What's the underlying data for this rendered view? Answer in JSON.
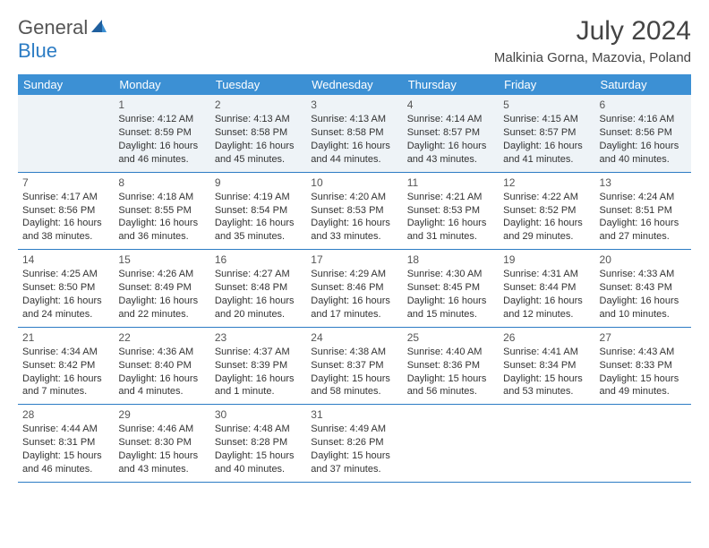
{
  "logo": {
    "part1": "General",
    "part2": "Blue"
  },
  "title": "July 2024",
  "location": "Malkinia Gorna, Mazovia, Poland",
  "colors": {
    "header_bg": "#3c90d4",
    "header_text": "#ffffff",
    "row_divider": "#2c7cc4",
    "first_row_bg": "#eef3f7",
    "body_text": "#333333",
    "logo_gray": "#555555",
    "logo_blue": "#2c7cc4",
    "page_bg": "#ffffff"
  },
  "weekdays": [
    "Sunday",
    "Monday",
    "Tuesday",
    "Wednesday",
    "Thursday",
    "Friday",
    "Saturday"
  ],
  "weeks": [
    [
      null,
      {
        "n": "1",
        "sr": "Sunrise: 4:12 AM",
        "ss": "Sunset: 8:59 PM",
        "dl": "Daylight: 16 hours and 46 minutes."
      },
      {
        "n": "2",
        "sr": "Sunrise: 4:13 AM",
        "ss": "Sunset: 8:58 PM",
        "dl": "Daylight: 16 hours and 45 minutes."
      },
      {
        "n": "3",
        "sr": "Sunrise: 4:13 AM",
        "ss": "Sunset: 8:58 PM",
        "dl": "Daylight: 16 hours and 44 minutes."
      },
      {
        "n": "4",
        "sr": "Sunrise: 4:14 AM",
        "ss": "Sunset: 8:57 PM",
        "dl": "Daylight: 16 hours and 43 minutes."
      },
      {
        "n": "5",
        "sr": "Sunrise: 4:15 AM",
        "ss": "Sunset: 8:57 PM",
        "dl": "Daylight: 16 hours and 41 minutes."
      },
      {
        "n": "6",
        "sr": "Sunrise: 4:16 AM",
        "ss": "Sunset: 8:56 PM",
        "dl": "Daylight: 16 hours and 40 minutes."
      }
    ],
    [
      {
        "n": "7",
        "sr": "Sunrise: 4:17 AM",
        "ss": "Sunset: 8:56 PM",
        "dl": "Daylight: 16 hours and 38 minutes."
      },
      {
        "n": "8",
        "sr": "Sunrise: 4:18 AM",
        "ss": "Sunset: 8:55 PM",
        "dl": "Daylight: 16 hours and 36 minutes."
      },
      {
        "n": "9",
        "sr": "Sunrise: 4:19 AM",
        "ss": "Sunset: 8:54 PM",
        "dl": "Daylight: 16 hours and 35 minutes."
      },
      {
        "n": "10",
        "sr": "Sunrise: 4:20 AM",
        "ss": "Sunset: 8:53 PM",
        "dl": "Daylight: 16 hours and 33 minutes."
      },
      {
        "n": "11",
        "sr": "Sunrise: 4:21 AM",
        "ss": "Sunset: 8:53 PM",
        "dl": "Daylight: 16 hours and 31 minutes."
      },
      {
        "n": "12",
        "sr": "Sunrise: 4:22 AM",
        "ss": "Sunset: 8:52 PM",
        "dl": "Daylight: 16 hours and 29 minutes."
      },
      {
        "n": "13",
        "sr": "Sunrise: 4:24 AM",
        "ss": "Sunset: 8:51 PM",
        "dl": "Daylight: 16 hours and 27 minutes."
      }
    ],
    [
      {
        "n": "14",
        "sr": "Sunrise: 4:25 AM",
        "ss": "Sunset: 8:50 PM",
        "dl": "Daylight: 16 hours and 24 minutes."
      },
      {
        "n": "15",
        "sr": "Sunrise: 4:26 AM",
        "ss": "Sunset: 8:49 PM",
        "dl": "Daylight: 16 hours and 22 minutes."
      },
      {
        "n": "16",
        "sr": "Sunrise: 4:27 AM",
        "ss": "Sunset: 8:48 PM",
        "dl": "Daylight: 16 hours and 20 minutes."
      },
      {
        "n": "17",
        "sr": "Sunrise: 4:29 AM",
        "ss": "Sunset: 8:46 PM",
        "dl": "Daylight: 16 hours and 17 minutes."
      },
      {
        "n": "18",
        "sr": "Sunrise: 4:30 AM",
        "ss": "Sunset: 8:45 PM",
        "dl": "Daylight: 16 hours and 15 minutes."
      },
      {
        "n": "19",
        "sr": "Sunrise: 4:31 AM",
        "ss": "Sunset: 8:44 PM",
        "dl": "Daylight: 16 hours and 12 minutes."
      },
      {
        "n": "20",
        "sr": "Sunrise: 4:33 AM",
        "ss": "Sunset: 8:43 PM",
        "dl": "Daylight: 16 hours and 10 minutes."
      }
    ],
    [
      {
        "n": "21",
        "sr": "Sunrise: 4:34 AM",
        "ss": "Sunset: 8:42 PM",
        "dl": "Daylight: 16 hours and 7 minutes."
      },
      {
        "n": "22",
        "sr": "Sunrise: 4:36 AM",
        "ss": "Sunset: 8:40 PM",
        "dl": "Daylight: 16 hours and 4 minutes."
      },
      {
        "n": "23",
        "sr": "Sunrise: 4:37 AM",
        "ss": "Sunset: 8:39 PM",
        "dl": "Daylight: 16 hours and 1 minute."
      },
      {
        "n": "24",
        "sr": "Sunrise: 4:38 AM",
        "ss": "Sunset: 8:37 PM",
        "dl": "Daylight: 15 hours and 58 minutes."
      },
      {
        "n": "25",
        "sr": "Sunrise: 4:40 AM",
        "ss": "Sunset: 8:36 PM",
        "dl": "Daylight: 15 hours and 56 minutes."
      },
      {
        "n": "26",
        "sr": "Sunrise: 4:41 AM",
        "ss": "Sunset: 8:34 PM",
        "dl": "Daylight: 15 hours and 53 minutes."
      },
      {
        "n": "27",
        "sr": "Sunrise: 4:43 AM",
        "ss": "Sunset: 8:33 PM",
        "dl": "Daylight: 15 hours and 49 minutes."
      }
    ],
    [
      {
        "n": "28",
        "sr": "Sunrise: 4:44 AM",
        "ss": "Sunset: 8:31 PM",
        "dl": "Daylight: 15 hours and 46 minutes."
      },
      {
        "n": "29",
        "sr": "Sunrise: 4:46 AM",
        "ss": "Sunset: 8:30 PM",
        "dl": "Daylight: 15 hours and 43 minutes."
      },
      {
        "n": "30",
        "sr": "Sunrise: 4:48 AM",
        "ss": "Sunset: 8:28 PM",
        "dl": "Daylight: 15 hours and 40 minutes."
      },
      {
        "n": "31",
        "sr": "Sunrise: 4:49 AM",
        "ss": "Sunset: 8:26 PM",
        "dl": "Daylight: 15 hours and 37 minutes."
      },
      null,
      null,
      null
    ]
  ]
}
